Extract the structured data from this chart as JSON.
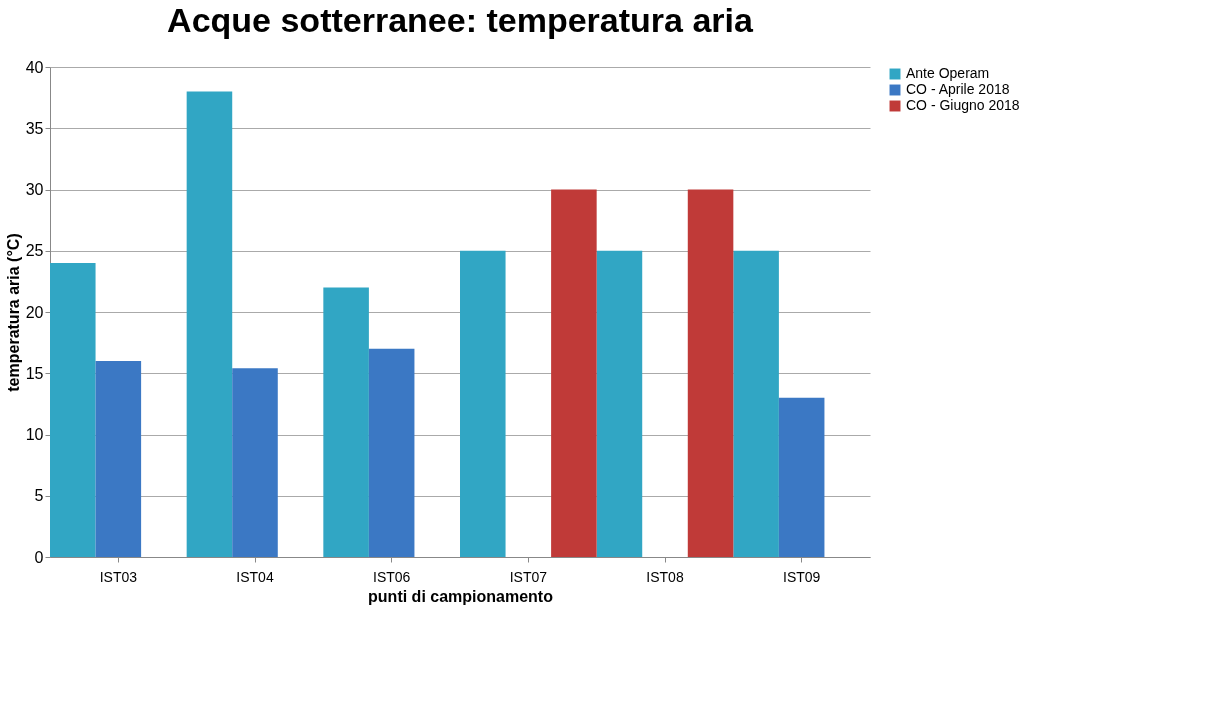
{
  "chart_data": {
    "type": "bar",
    "title": "Acque sotterranee: temperatura aria",
    "xlabel": "punti di campionamento",
    "ylabel": "temperatura aria (°C)",
    "categories": [
      "IST03",
      "IST04",
      "IST06",
      "IST07",
      "IST08",
      "IST09"
    ],
    "series": [
      {
        "name": "Ante Operam",
        "color": "#31a6c4",
        "values": [
          24,
          38,
          22,
          25,
          25,
          25
        ]
      },
      {
        "name": "CO - Aprile 2018",
        "color": "#3b78c4",
        "values": [
          16,
          15.4,
          17,
          null,
          null,
          13
        ]
      },
      {
        "name": "CO - Giugno 2018",
        "color": "#c03a38",
        "values": [
          null,
          null,
          null,
          30,
          30,
          null
        ]
      }
    ],
    "ylim": [
      0,
      40
    ],
    "yticks": [
      0,
      5,
      10,
      15,
      20,
      25,
      30,
      35,
      40
    ],
    "grid": "y",
    "legend": "right"
  }
}
